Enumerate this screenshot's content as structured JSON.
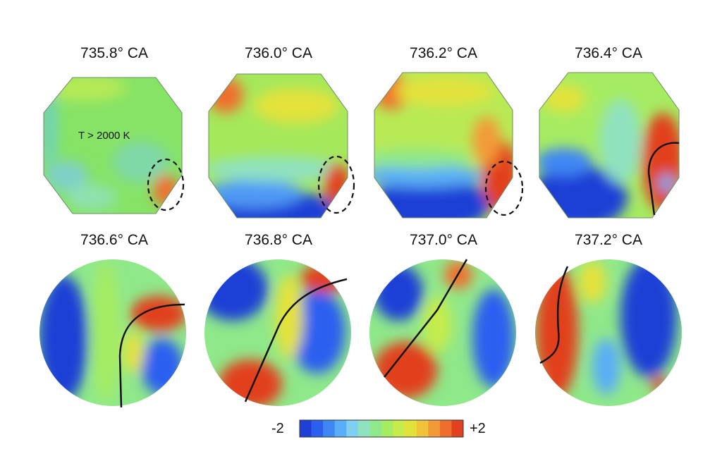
{
  "figure": {
    "panels": [
      {
        "id": "p1",
        "title": "735.8° CA"
      },
      {
        "id": "p2",
        "title": "736.0° CA"
      },
      {
        "id": "p3",
        "title": "736.2° CA"
      },
      {
        "id": "p4",
        "title": "736.4° CA"
      },
      {
        "id": "p5",
        "title": "736.6° CA"
      },
      {
        "id": "p6",
        "title": "736.8° CA"
      },
      {
        "id": "p7",
        "title": "737.0° CA"
      },
      {
        "id": "p8",
        "title": "737.2° CA"
      }
    ],
    "annotation": "T > 2000 K",
    "colorbar": {
      "min_label": "-2",
      "max_label": "+2",
      "colors": [
        "#1f3fd6",
        "#2a5ff0",
        "#3f86f5",
        "#5aaef7",
        "#7fd0f0",
        "#8fe2c0",
        "#8fe88a",
        "#a6ec62",
        "#c6ec4a",
        "#e4e23a",
        "#f3c23a",
        "#f39a38",
        "#ef6e2e",
        "#e2401f"
      ]
    }
  }
}
